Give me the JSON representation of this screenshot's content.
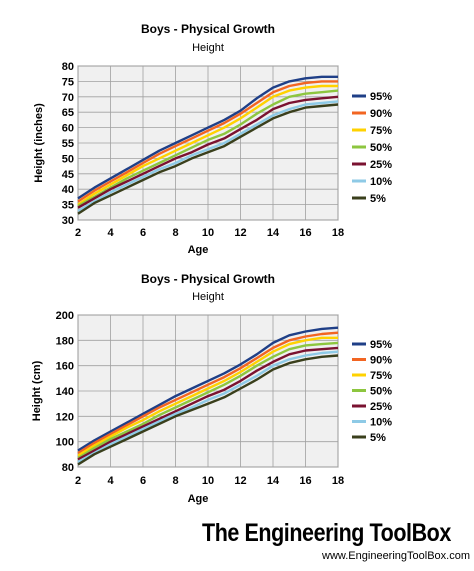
{
  "colors": {
    "95%": "#1f3f87",
    "90%": "#f26522",
    "75%": "#ffd200",
    "50%": "#8dc63f",
    "25%": "#7a1230",
    "10%": "#8ecae6",
    "5%": "#3a3f1c",
    "grid": "#a0a0a0",
    "plot_background": "#f0f0f0"
  },
  "chart_data": [
    {
      "type": "line",
      "title": "Boys - Physical Growth",
      "subtitle": "Height",
      "xlabel": "Age",
      "ylabel": "Height (inches)",
      "xlim": [
        2,
        18
      ],
      "ylim": [
        30,
        80
      ],
      "xticks": [
        "2",
        "4",
        "6",
        "8",
        "10",
        "12",
        "14",
        "16",
        "18"
      ],
      "yticks": [
        "30",
        "35",
        "40",
        "45",
        "50",
        "55",
        "60",
        "65",
        "70",
        "75",
        "80"
      ],
      "grid": true,
      "legend_position": "right",
      "x": [
        2,
        3,
        4,
        5,
        6,
        7,
        8,
        9,
        10,
        11,
        12,
        13,
        14,
        15,
        16,
        17,
        18
      ],
      "series": [
        {
          "name": "95%",
          "color": "#1f3f87",
          "values": [
            37.0,
            40.5,
            43.5,
            46.5,
            49.5,
            52.5,
            55.0,
            57.5,
            60.0,
            62.5,
            65.5,
            69.5,
            73.0,
            75.0,
            76.0,
            76.5,
            76.5
          ]
        },
        {
          "name": "90%",
          "color": "#f26522",
          "values": [
            36.0,
            39.5,
            42.5,
            45.5,
            48.5,
            51.5,
            54.0,
            56.5,
            59.0,
            61.5,
            64.5,
            68.0,
            71.5,
            73.5,
            74.5,
            75.0,
            75.0
          ]
        },
        {
          "name": "75%",
          "color": "#ffd200",
          "values": [
            35.0,
            38.5,
            41.5,
            44.5,
            47.5,
            50.0,
            52.5,
            55.0,
            57.5,
            60.0,
            63.0,
            66.5,
            70.0,
            72.0,
            73.0,
            73.5,
            73.5
          ]
        },
        {
          "name": "50%",
          "color": "#8dc63f",
          "values": [
            34.5,
            37.5,
            40.5,
            43.5,
            46.0,
            48.5,
            51.0,
            53.5,
            56.0,
            58.0,
            61.0,
            64.5,
            67.5,
            70.0,
            71.0,
            71.5,
            72.0
          ]
        },
        {
          "name": "25%",
          "color": "#7a1230",
          "values": [
            34.0,
            37.0,
            40.0,
            42.5,
            45.0,
            47.5,
            50.0,
            52.0,
            54.5,
            56.5,
            59.5,
            62.5,
            66.0,
            68.0,
            69.0,
            69.5,
            70.0
          ]
        },
        {
          "name": "10%",
          "color": "#8ecae6",
          "values": [
            33.0,
            36.0,
            39.0,
            41.5,
            44.0,
            46.5,
            48.5,
            51.0,
            53.0,
            55.0,
            58.0,
            61.0,
            64.0,
            66.0,
            67.5,
            68.0,
            68.5
          ]
        },
        {
          "name": "5%",
          "color": "#3a3f1c",
          "values": [
            32.0,
            35.5,
            38.0,
            40.5,
            43.0,
            45.5,
            47.5,
            50.0,
            52.0,
            54.0,
            57.0,
            60.0,
            63.0,
            65.0,
            66.5,
            67.0,
            67.5
          ]
        }
      ]
    },
    {
      "type": "line",
      "title": "Boys - Physical Growth",
      "subtitle": "Height",
      "xlabel": "Age",
      "ylabel": "Height (cm)",
      "xlim": [
        2,
        18
      ],
      "ylim": [
        80,
        200
      ],
      "xticks": [
        "2",
        "4",
        "6",
        "8",
        "10",
        "12",
        "14",
        "16",
        "18"
      ],
      "yticks": [
        "80",
        "100",
        "120",
        "140",
        "160",
        "180",
        "200"
      ],
      "grid": true,
      "legend_position": "right",
      "x": [
        2,
        3,
        4,
        5,
        6,
        7,
        8,
        9,
        10,
        11,
        12,
        13,
        14,
        15,
        16,
        17,
        18
      ],
      "series": [
        {
          "name": "95%",
          "color": "#1f3f87",
          "values": [
            93,
            101,
            108,
            115,
            122,
            129,
            136,
            142,
            148,
            154,
            161,
            169,
            178,
            184,
            187,
            189,
            190
          ]
        },
        {
          "name": "90%",
          "color": "#f26522",
          "values": [
            91,
            99,
            106,
            113,
            120,
            127,
            133,
            139,
            145,
            151,
            158,
            166,
            174,
            180,
            183,
            185,
            186
          ]
        },
        {
          "name": "75%",
          "color": "#ffd200",
          "values": [
            89,
            97,
            104,
            111,
            117,
            124,
            130,
            136,
            142,
            148,
            155,
            163,
            171,
            177,
            180,
            182,
            182
          ]
        },
        {
          "name": "50%",
          "color": "#8dc63f",
          "values": [
            87,
            95,
            102,
            108,
            114,
            121,
            127,
            133,
            139,
            145,
            152,
            160,
            167,
            173,
            176,
            177,
            178
          ]
        },
        {
          "name": "25%",
          "color": "#7a1230",
          "values": [
            86,
            93,
            100,
            106,
            112,
            118,
            124,
            130,
            136,
            141,
            148,
            156,
            163,
            169,
            172,
            173,
            174
          ]
        },
        {
          "name": "10%",
          "color": "#8ecae6",
          "values": [
            84,
            91,
            98,
            104,
            110,
            116,
            122,
            127,
            133,
            138,
            145,
            152,
            160,
            165,
            168,
            170,
            171
          ]
        },
        {
          "name": "5%",
          "color": "#3a3f1c",
          "values": [
            82,
            90,
            96,
            102,
            108,
            114,
            120,
            125,
            130,
            135,
            142,
            149,
            157,
            162,
            165,
            167,
            168
          ]
        }
      ]
    }
  ],
  "brand": {
    "name": "The Engineering ToolBox",
    "url": "www.EngineeringToolBox.com"
  }
}
